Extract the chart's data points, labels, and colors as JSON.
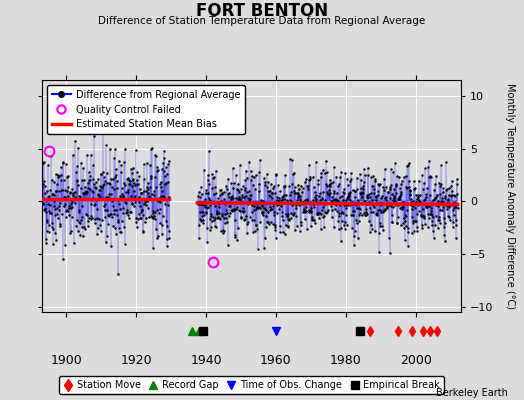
{
  "title": "FORT BENTON",
  "subtitle": "Difference of Station Temperature Data from Regional Average",
  "ylabel": "Monthly Temperature Anomaly Difference (°C)",
  "xlim": [
    1893,
    2013
  ],
  "ylim": [
    -10.5,
    11.5
  ],
  "yticks": [
    -10,
    -5,
    0,
    5,
    10
  ],
  "xticks": [
    1900,
    1920,
    1940,
    1960,
    1980,
    2000
  ],
  "bg_color": "#dcdcdc",
  "plot_bg_color": "#dcdcdc",
  "grid_color": "#ffffff",
  "seed": 42,
  "station_moves": [
    1987,
    1995,
    1999,
    2002,
    2004,
    2006
  ],
  "record_gaps": [
    1936,
    1938
  ],
  "time_obs_changes": [
    1960
  ],
  "empirical_breaks": [
    1939,
    1984
  ],
  "qc_failed_1_x": 1895,
  "qc_failed_1_y": 4.8,
  "qc_failed_2_x": 1942,
  "qc_failed_2_y": -5.8,
  "data_start": 1893.0,
  "data_end": 2012.0,
  "gap_start": 1929.5,
  "gap_end": 1937.5,
  "bias_before": 0.25,
  "bias_after": -0.15,
  "bias_slope_after": -0.002,
  "berkeley_earth_text": "Berkeley Earth"
}
